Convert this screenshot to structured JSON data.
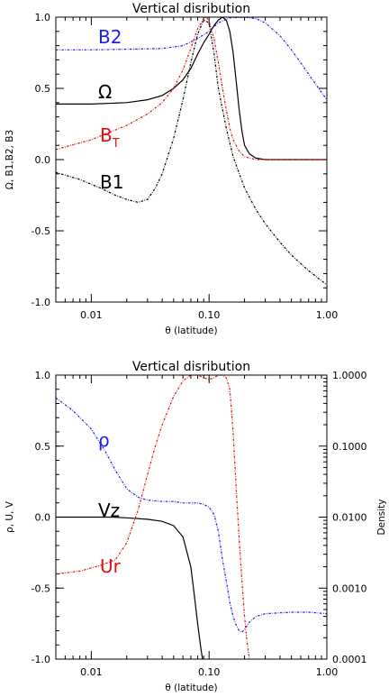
{
  "chart_data": [
    {
      "type": "line",
      "title": "Vertical disribution",
      "xlabel": "θ (latitude)",
      "ylabel": "Ω, B1,B2, B3",
      "x_scale": "log",
      "xlim": [
        0.005,
        1.0
      ],
      "ylim": [
        -1.0,
        1.0
      ],
      "x_ticks": [
        "0.01",
        "0.10",
        "1.00"
      ],
      "y_ticks": [
        "-1.0",
        "-0.5",
        "0.0",
        "0.5",
        "1.0"
      ],
      "series": [
        {
          "name": "B2",
          "color": "#1a1aff",
          "style": "dash-dot",
          "label_parts": [
            "B2"
          ],
          "x": [
            0.005,
            0.01,
            0.02,
            0.04,
            0.06,
            0.08,
            0.1,
            0.12,
            0.15,
            0.2,
            0.25,
            0.3,
            0.4,
            0.5,
            0.6,
            0.7,
            0.85,
            1.0
          ],
          "y": [
            0.77,
            0.77,
            0.775,
            0.78,
            0.8,
            0.85,
            0.9,
            0.96,
            0.995,
            1.0,
            0.99,
            0.96,
            0.87,
            0.77,
            0.68,
            0.6,
            0.5,
            0.42
          ]
        },
        {
          "name": "Ω",
          "color": "#000000",
          "style": "solid",
          "label_parts": [
            "Ω"
          ],
          "x": [
            0.005,
            0.01,
            0.02,
            0.03,
            0.04,
            0.05,
            0.06,
            0.07,
            0.08,
            0.09,
            0.1,
            0.11,
            0.12,
            0.13,
            0.14,
            0.15,
            0.16,
            0.17,
            0.18,
            0.19,
            0.2,
            0.22,
            0.25,
            0.3,
            0.4,
            0.5,
            1.0
          ],
          "y": [
            0.39,
            0.39,
            0.4,
            0.42,
            0.45,
            0.5,
            0.56,
            0.64,
            0.74,
            0.82,
            0.88,
            0.94,
            0.98,
            1.0,
            0.98,
            0.9,
            0.75,
            0.55,
            0.35,
            0.2,
            0.1,
            0.04,
            0.01,
            0.0,
            0.0,
            0.0,
            0.0
          ]
        },
        {
          "name": "BT",
          "color": "#e01010",
          "style": "dash-dot",
          "label_parts": [
            "B",
            "T"
          ],
          "x": [
            0.005,
            0.01,
            0.02,
            0.03,
            0.04,
            0.05,
            0.06,
            0.07,
            0.08,
            0.09,
            0.095,
            0.1,
            0.11,
            0.12,
            0.13,
            0.14,
            0.15,
            0.16,
            0.18,
            0.2,
            0.25,
            0.3,
            0.5,
            1.0
          ],
          "y": [
            0.07,
            0.14,
            0.24,
            0.32,
            0.4,
            0.5,
            0.63,
            0.78,
            0.92,
            0.99,
            1.0,
            0.97,
            0.85,
            0.68,
            0.5,
            0.35,
            0.22,
            0.14,
            0.06,
            0.02,
            0.0,
            0.0,
            0.0,
            0.0
          ]
        },
        {
          "name": "B1",
          "color": "#000000",
          "style": "dash-dot",
          "label_parts": [
            "B1"
          ],
          "x": [
            0.005,
            0.008,
            0.012,
            0.016,
            0.02,
            0.025,
            0.03,
            0.035,
            0.04,
            0.05,
            0.06,
            0.07,
            0.08,
            0.09,
            0.1,
            0.11,
            0.12,
            0.14,
            0.16,
            0.2,
            0.25,
            0.3,
            0.4,
            0.5,
            0.7,
            1.0
          ],
          "y": [
            -0.09,
            -0.14,
            -0.2,
            -0.25,
            -0.28,
            -0.3,
            -0.28,
            -0.2,
            -0.1,
            0.15,
            0.42,
            0.68,
            0.88,
            0.98,
            0.96,
            0.75,
            0.5,
            0.22,
            0.02,
            -0.2,
            -0.35,
            -0.45,
            -0.58,
            -0.67,
            -0.78,
            -0.88
          ]
        }
      ]
    },
    {
      "type": "line",
      "title": "Vertical disribution",
      "xlabel": "θ (latitude)",
      "ylabel": "ρ, U, V",
      "y2label": "Density",
      "x_scale": "log",
      "xlim": [
        0.005,
        1.0
      ],
      "ylim": [
        -1.0,
        1.0
      ],
      "y2_scale": "log",
      "y2lim": [
        0.0001,
        1.0
      ],
      "x_ticks": [
        "0.01",
        "0.10",
        "1.00"
      ],
      "y_ticks": [
        "-1.0",
        "-0.5",
        "0.0",
        "0.5",
        "1.0"
      ],
      "y2_ticks": [
        "0.0001",
        "0.0010",
        "0.0100",
        "0.1000",
        "1.0000"
      ],
      "series": [
        {
          "name": "ρ",
          "color": "#1a1aff",
          "style": "dash-dot",
          "label_parts": [
            "ρ"
          ],
          "x": [
            0.005,
            0.007,
            0.01,
            0.013,
            0.016,
            0.02,
            0.025,
            0.03,
            0.04,
            0.05,
            0.06,
            0.07,
            0.08,
            0.09,
            0.1,
            0.11,
            0.12,
            0.13,
            0.14,
            0.15,
            0.16,
            0.17,
            0.18,
            0.19,
            0.2,
            0.22,
            0.25,
            0.3,
            0.5,
            0.7,
            1.0
          ],
          "y": [
            0.84,
            0.75,
            0.62,
            0.47,
            0.33,
            0.2,
            0.14,
            0.12,
            0.11,
            0.11,
            0.1,
            0.1,
            0.1,
            0.09,
            0.07,
            0.02,
            -0.1,
            -0.3,
            -0.45,
            -0.6,
            -0.7,
            -0.76,
            -0.8,
            -0.81,
            -0.79,
            -0.74,
            -0.7,
            -0.68,
            -0.67,
            -0.67,
            -0.68
          ]
        },
        {
          "name": "Vz",
          "color": "#000000",
          "style": "solid",
          "label_parts": [
            "Vz"
          ],
          "x": [
            0.005,
            0.01,
            0.015,
            0.02,
            0.03,
            0.04,
            0.05,
            0.06,
            0.07,
            0.075,
            0.08,
            0.085,
            0.088
          ],
          "y": [
            0.0,
            0.0,
            0.0,
            -0.005,
            -0.015,
            -0.03,
            -0.06,
            -0.14,
            -0.35,
            -0.55,
            -0.75,
            -0.92,
            -1.0
          ]
        },
        {
          "name": "Ur",
          "color": "#e01010",
          "style": "dash-dot",
          "label_parts": [
            "Ur"
          ],
          "x": [
            0.005,
            0.008,
            0.012,
            0.016,
            0.02,
            0.025,
            0.03,
            0.035,
            0.04,
            0.05,
            0.06,
            0.07,
            0.08,
            0.09,
            0.1,
            0.11,
            0.12,
            0.13,
            0.14,
            0.15,
            0.16,
            0.17,
            0.18,
            0.19,
            0.2,
            0.21,
            0.22
          ],
          "y": [
            -0.4,
            -0.38,
            -0.34,
            -0.3,
            -0.18,
            0.05,
            0.3,
            0.5,
            0.65,
            0.85,
            0.96,
            1.0,
            1.0,
            0.98,
            0.97,
            0.98,
            1.0,
            1.0,
            0.98,
            0.9,
            0.6,
            0.2,
            -0.15,
            -0.45,
            -0.7,
            -0.88,
            -1.0
          ]
        }
      ]
    }
  ]
}
